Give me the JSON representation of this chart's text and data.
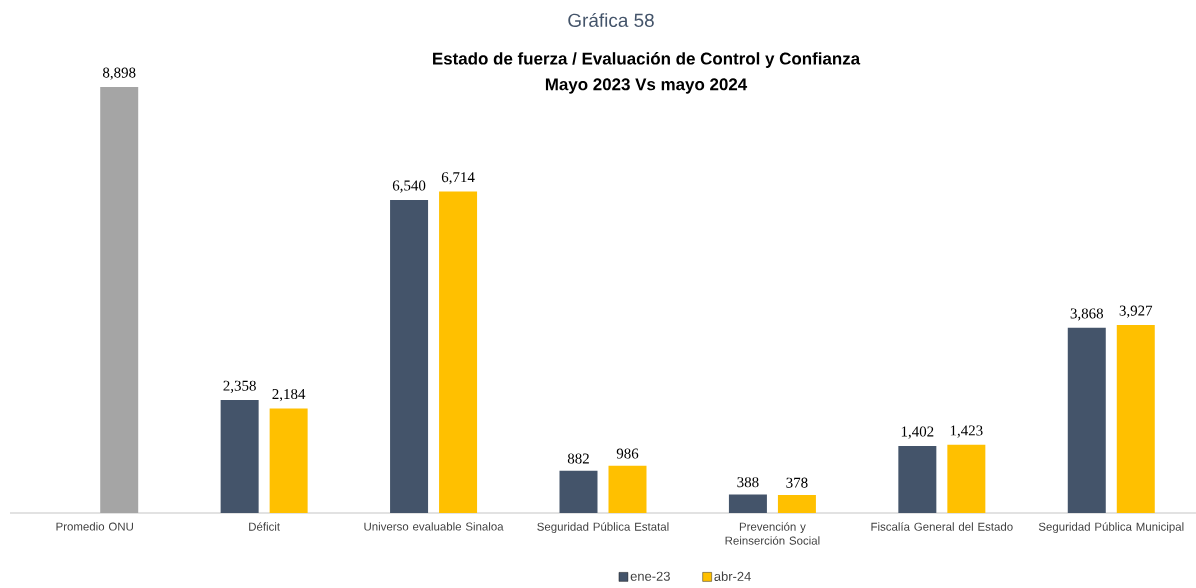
{
  "chart_data": {
    "type": "bar",
    "title": "Estado de fuerza / Evaluación de Control y Confianza",
    "subtitle": "Mayo 2023 Vs mayo 2024",
    "annotations": [
      "Gráfica 58"
    ],
    "categories": [
      "Promedio ONU",
      "Déficit",
      "Universo evaluable Sinaloa",
      "Seguridad Pública Estatal",
      "Prevención y Reinserción Social",
      "Fiscalía General del Estado",
      "Seguridad Pública Municipal"
    ],
    "series": [
      {
        "name": "ene-23",
        "color": "#44546a",
        "values": [
          null,
          2358,
          6540,
          882,
          388,
          1402,
          3868
        ],
        "value_labels": [
          null,
          "2,358",
          "6,540",
          "882",
          "388",
          "1,402",
          "3,868"
        ]
      },
      {
        "name": "abr-24",
        "color": "#ffc000",
        "colors": [
          "#a5a5a5",
          "#ffc000",
          "#ffc000",
          "#ffc000",
          "#ffc000",
          "#ffc000",
          "#ffc000"
        ],
        "values": [
          8898,
          2184,
          6714,
          986,
          378,
          1423,
          3927
        ],
        "value_labels": [
          "8,898",
          "2,184",
          "6,714",
          "986",
          "378",
          "1,423",
          "3,927"
        ]
      }
    ],
    "legend": "bottom"
  }
}
